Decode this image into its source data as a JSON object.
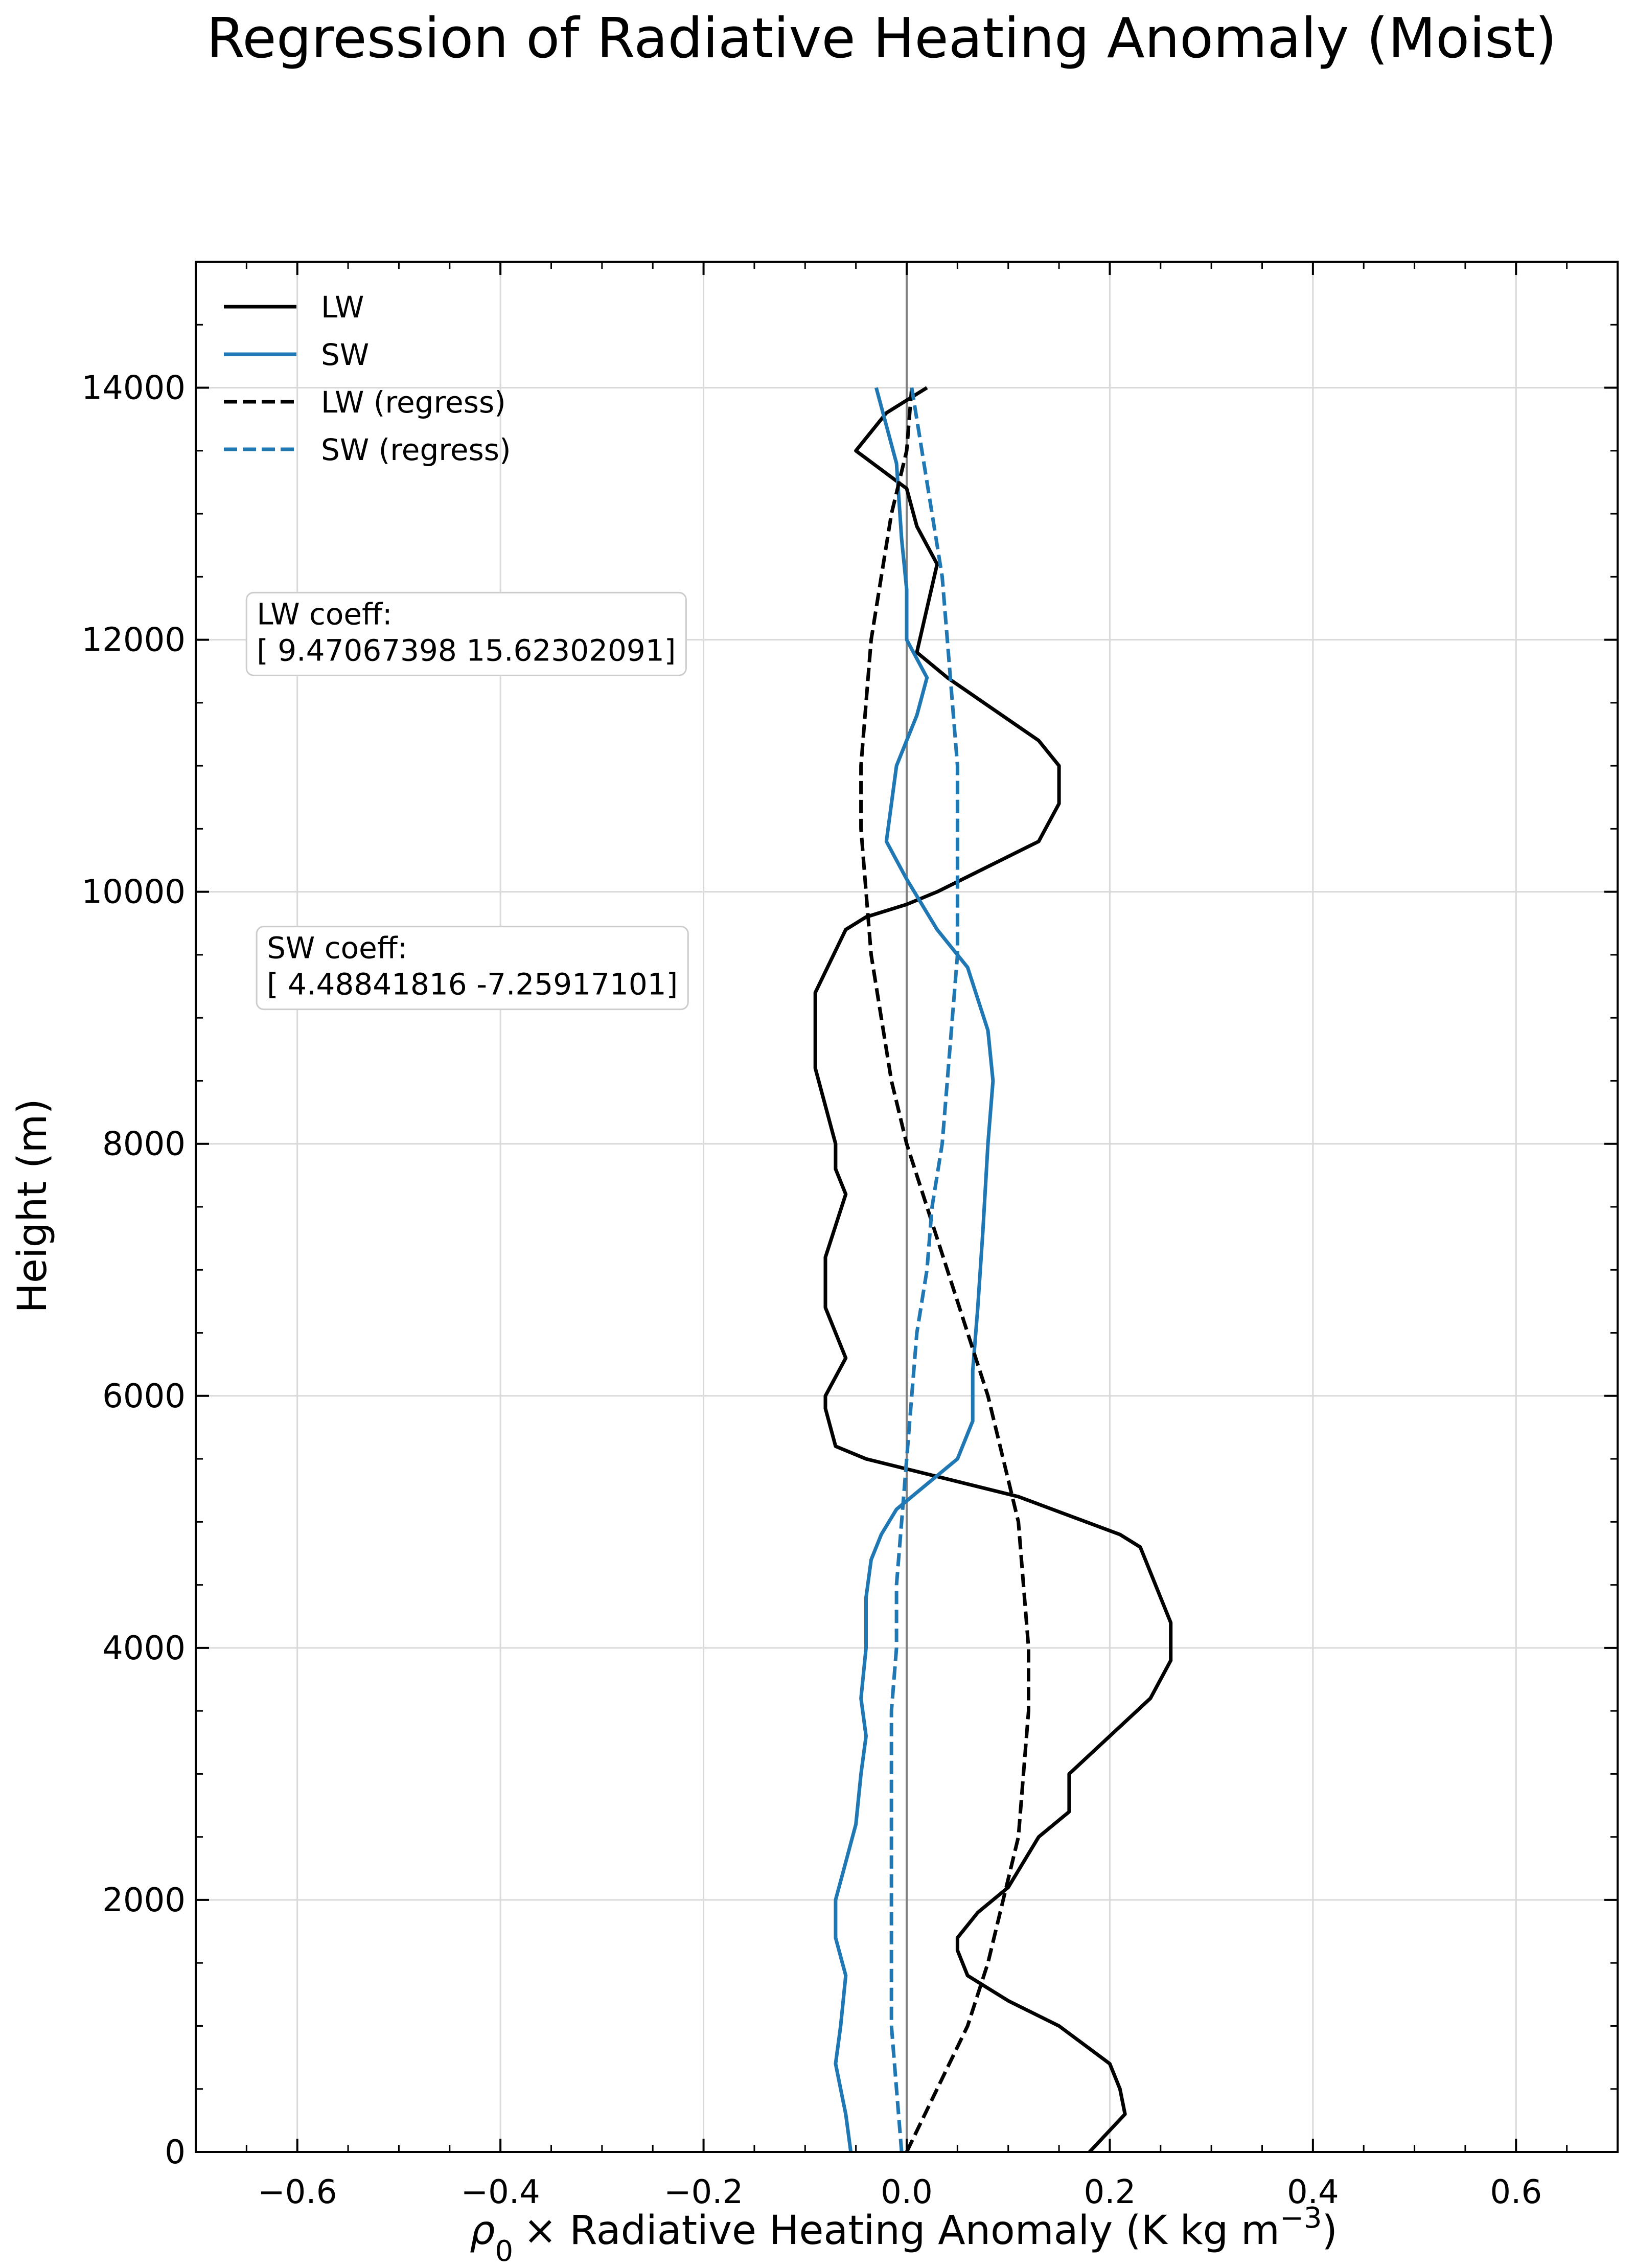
{
  "chart_data": {
    "type": "line",
    "title": "Regression of Radiative Heating Anomaly (Moist)",
    "xlabel_parts": {
      "rho": "ρ",
      "sub": "0",
      "rest": "× Radiative Heating Anomaly (K kg m",
      "sup": "−3",
      "close": ")"
    },
    "ylabel": "Height (m)",
    "xlim": [
      -0.7,
      0.7
    ],
    "ylim": [
      0,
      15000
    ],
    "xticks": [
      -0.6,
      -0.4,
      -0.2,
      0.0,
      0.2,
      0.4,
      0.6
    ],
    "xtick_labels": [
      "−0.6",
      "−0.4",
      "−0.2",
      "0.0",
      "0.2",
      "0.4",
      "0.6"
    ],
    "yticks": [
      0,
      2000,
      4000,
      6000,
      8000,
      10000,
      12000,
      14000
    ],
    "ytick_labels": [
      "0",
      "2000",
      "4000",
      "6000",
      "8000",
      "10000",
      "12000",
      "14000"
    ],
    "grid": true,
    "zero_line": true,
    "legend_location": "upper-left",
    "series": [
      {
        "name": "LW",
        "style": "solid",
        "color": "#000000",
        "points": [
          [
            0.18,
            0
          ],
          [
            0.215,
            300
          ],
          [
            0.21,
            500
          ],
          [
            0.2,
            700
          ],
          [
            0.15,
            1000
          ],
          [
            0.1,
            1200
          ],
          [
            0.06,
            1400
          ],
          [
            0.05,
            1600
          ],
          [
            0.05,
            1700
          ],
          [
            0.07,
            1900
          ],
          [
            0.1,
            2100
          ],
          [
            0.13,
            2500
          ],
          [
            0.16,
            2700
          ],
          [
            0.16,
            2800
          ],
          [
            0.16,
            3000
          ],
          [
            0.2,
            3300
          ],
          [
            0.24,
            3600
          ],
          [
            0.26,
            3900
          ],
          [
            0.26,
            4200
          ],
          [
            0.25,
            4400
          ],
          [
            0.24,
            4600
          ],
          [
            0.23,
            4800
          ],
          [
            0.21,
            4900
          ],
          [
            0.11,
            5200
          ],
          [
            -0.04,
            5500
          ],
          [
            -0.07,
            5600
          ],
          [
            -0.08,
            5900
          ],
          [
            -0.08,
            6000
          ],
          [
            -0.06,
            6300
          ],
          [
            -0.07,
            6500
          ],
          [
            -0.08,
            6700
          ],
          [
            -0.08,
            6900
          ],
          [
            -0.08,
            7100
          ],
          [
            -0.06,
            7600
          ],
          [
            -0.07,
            7800
          ],
          [
            -0.07,
            8000
          ],
          [
            -0.09,
            8600
          ],
          [
            -0.09,
            9200
          ],
          [
            -0.06,
            9700
          ],
          [
            -0.04,
            9800
          ],
          [
            0.0,
            9900
          ],
          [
            0.03,
            10000
          ],
          [
            0.08,
            10200
          ],
          [
            0.13,
            10400
          ],
          [
            0.15,
            10700
          ],
          [
            0.15,
            11000
          ],
          [
            0.13,
            11200
          ],
          [
            0.04,
            11700
          ],
          [
            0.01,
            11900
          ],
          [
            0.03,
            12600
          ],
          [
            0.01,
            12900
          ],
          [
            0.0,
            13200
          ],
          [
            -0.05,
            13500
          ],
          [
            -0.02,
            13800
          ],
          [
            0.02,
            14000
          ]
        ]
      },
      {
        "name": "SW",
        "style": "solid",
        "color": "#1f77b4",
        "points": [
          [
            -0.055,
            0
          ],
          [
            -0.06,
            300
          ],
          [
            -0.065,
            500
          ],
          [
            -0.07,
            700
          ],
          [
            -0.065,
            1000
          ],
          [
            -0.06,
            1400
          ],
          [
            -0.07,
            1700
          ],
          [
            -0.07,
            2000
          ],
          [
            -0.06,
            2300
          ],
          [
            -0.05,
            2600
          ],
          [
            -0.045,
            3000
          ],
          [
            -0.04,
            3300
          ],
          [
            -0.045,
            3600
          ],
          [
            -0.04,
            4000
          ],
          [
            -0.04,
            4400
          ],
          [
            -0.035,
            4700
          ],
          [
            -0.025,
            4900
          ],
          [
            -0.01,
            5100
          ],
          [
            0.02,
            5300
          ],
          [
            0.05,
            5500
          ],
          [
            0.065,
            5800
          ],
          [
            0.065,
            6200
          ],
          [
            0.07,
            6700
          ],
          [
            0.075,
            7300
          ],
          [
            0.08,
            8000
          ],
          [
            0.085,
            8500
          ],
          [
            0.08,
            8900
          ],
          [
            0.06,
            9400
          ],
          [
            0.03,
            9700
          ],
          [
            0.0,
            10100
          ],
          [
            -0.02,
            10400
          ],
          [
            -0.015,
            10700
          ],
          [
            -0.01,
            11000
          ],
          [
            0.01,
            11400
          ],
          [
            0.02,
            11700
          ],
          [
            0.0,
            12000
          ],
          [
            0.0,
            12400
          ],
          [
            -0.005,
            12800
          ],
          [
            -0.01,
            13400
          ],
          [
            -0.03,
            14000
          ]
        ]
      },
      {
        "name": "LW (regress)",
        "style": "dashed",
        "color": "#000000",
        "points": [
          [
            0.0,
            0
          ],
          [
            0.03,
            500
          ],
          [
            0.06,
            1000
          ],
          [
            0.08,
            1500
          ],
          [
            0.095,
            2000
          ],
          [
            0.11,
            2500
          ],
          [
            0.115,
            3000
          ],
          [
            0.12,
            3500
          ],
          [
            0.12,
            4000
          ],
          [
            0.115,
            4500
          ],
          [
            0.11,
            5000
          ],
          [
            0.095,
            5500
          ],
          [
            0.08,
            6000
          ],
          [
            0.06,
            6500
          ],
          [
            0.04,
            7000
          ],
          [
            0.02,
            7500
          ],
          [
            0.0,
            8000
          ],
          [
            -0.015,
            8500
          ],
          [
            -0.025,
            9000
          ],
          [
            -0.035,
            9500
          ],
          [
            -0.04,
            10000
          ],
          [
            -0.045,
            10500
          ],
          [
            -0.045,
            11000
          ],
          [
            -0.04,
            11500
          ],
          [
            -0.035,
            12000
          ],
          [
            -0.025,
            12500
          ],
          [
            -0.015,
            13000
          ],
          [
            0.0,
            13500
          ],
          [
            0.005,
            14000
          ]
        ]
      },
      {
        "name": "SW (regress)",
        "style": "dashed",
        "color": "#1f77b4",
        "points": [
          [
            -0.005,
            0
          ],
          [
            -0.01,
            500
          ],
          [
            -0.015,
            1000
          ],
          [
            -0.015,
            1500
          ],
          [
            -0.015,
            2000
          ],
          [
            -0.015,
            2500
          ],
          [
            -0.015,
            3000
          ],
          [
            -0.015,
            3500
          ],
          [
            -0.01,
            4000
          ],
          [
            -0.01,
            4500
          ],
          [
            -0.005,
            5000
          ],
          [
            0.0,
            5500
          ],
          [
            0.005,
            6000
          ],
          [
            0.01,
            6500
          ],
          [
            0.02,
            7000
          ],
          [
            0.025,
            7500
          ],
          [
            0.035,
            8000
          ],
          [
            0.04,
            8500
          ],
          [
            0.045,
            9000
          ],
          [
            0.05,
            9500
          ],
          [
            0.05,
            10000
          ],
          [
            0.05,
            10500
          ],
          [
            0.05,
            11000
          ],
          [
            0.045,
            11500
          ],
          [
            0.04,
            12000
          ],
          [
            0.035,
            12500
          ],
          [
            0.025,
            13000
          ],
          [
            0.015,
            13500
          ],
          [
            0.005,
            14000
          ]
        ]
      }
    ],
    "annotations": [
      {
        "lines": [
          "LW coeff:",
          "[ 9.47067398 15.62302091]"
        ],
        "x": -0.64,
        "y": 12350
      },
      {
        "lines": [
          "SW coeff:",
          "[ 4.48841816 -7.25917101]"
        ],
        "x": -0.63,
        "y": 9700
      }
    ]
  }
}
